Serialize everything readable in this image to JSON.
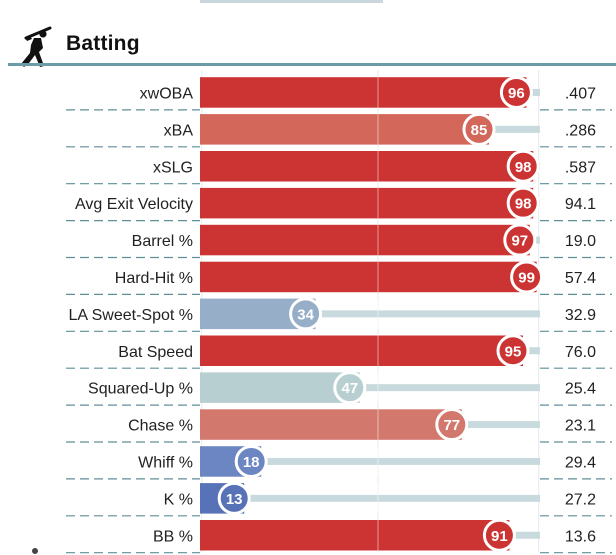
{
  "section": {
    "title": "Batting",
    "icon": "batter-silhouette-icon"
  },
  "colors": {
    "rule": "#6b9ba5",
    "track": "#c8dadd",
    "divider": "#5f8f99"
  },
  "chart_data": {
    "type": "bar",
    "orientation": "horizontal",
    "title": "Batting",
    "xlim": [
      0,
      100
    ],
    "categories": [
      "xwOBA",
      "xBA",
      "xSLG",
      "Avg Exit Velocity",
      "Barrel %",
      "Hard-Hit %",
      "LA Sweet-Spot %",
      "Bat Speed",
      "Squared-Up %",
      "Chase %",
      "Whiff %",
      "K %",
      "BB %"
    ],
    "percentiles": [
      96,
      85,
      98,
      98,
      97,
      99,
      34,
      95,
      47,
      77,
      18,
      13,
      91
    ],
    "values": [
      ".407",
      ".286",
      ".587",
      "94.1",
      "19.0",
      "57.4",
      "32.9",
      "76.0",
      "25.4",
      "23.1",
      "29.4",
      "27.2",
      "13.6"
    ],
    "bar_colors": [
      "#cc3333",
      "#d2675a",
      "#cc3333",
      "#cc3333",
      "#cc3333",
      "#cc3333",
      "#97aec8",
      "#cc3333",
      "#b8cfd2",
      "#d2786d",
      "#6b86c2",
      "#5872b8",
      "#cc3333"
    ],
    "grid": true
  }
}
